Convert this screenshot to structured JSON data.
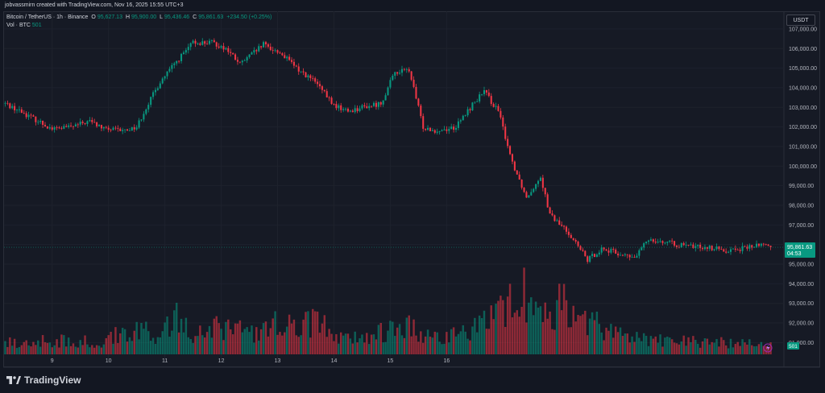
{
  "header": {
    "attribution": "jobvassmirn created with TradingView.com, Nov 16, 2025 15:55 UTC+3"
  },
  "legend": {
    "symbol": "Bitcoin / TetherUS · 1h · Binance",
    "open_label": "O",
    "open": "95,627.13",
    "high_label": "H",
    "high": "95,900.00",
    "low_label": "L",
    "low": "95,436.46",
    "close_label": "C",
    "close": "95,861.63",
    "change": "+234.50 (+0.25%)",
    "vol_label": "Vol · BTC",
    "vol_value": "501"
  },
  "currency_button": "USDT",
  "price_tag": {
    "price": "95,861.63",
    "countdown": "04:53"
  },
  "volume_tag": "501",
  "footer": {
    "brand": "TradingView"
  },
  "colors": {
    "up": "#089981",
    "down": "#f23645",
    "background": "#131722",
    "grid": "#1e222d",
    "text": "#d1d4dc"
  },
  "chart_data": {
    "type": "candlestick",
    "interval": "1h",
    "ylim": [
      90400,
      107900
    ],
    "grid": true,
    "y_ticks": [
      "107,000.00",
      "106,000.00",
      "105,000.00",
      "104,000.00",
      "103,000.00",
      "102,000.00",
      "101,000.00",
      "100,000.00",
      "99,000.00",
      "98,000.00",
      "97,000.00",
      "96,000.00",
      "95,000.00",
      "94,000.00",
      "93,000.00",
      "92,000.00",
      "91,000.00"
    ],
    "y_tick_values": [
      107000,
      106000,
      105000,
      104000,
      103000,
      102000,
      101000,
      100000,
      99000,
      98000,
      97000,
      96000,
      95000,
      94000,
      93000,
      92000,
      91000
    ],
    "x_ticks": [
      "9",
      "10",
      "11",
      "12",
      "13",
      "14",
      "15",
      "16"
    ],
    "price_anchors": [
      [
        0,
        103200
      ],
      [
        8,
        102700
      ],
      [
        14,
        102300
      ],
      [
        20,
        101900
      ],
      [
        28,
        102000
      ],
      [
        36,
        102300
      ],
      [
        42,
        101900
      ],
      [
        50,
        101800
      ],
      [
        56,
        102000
      ],
      [
        60,
        103000
      ],
      [
        66,
        104300
      ],
      [
        72,
        105200
      ],
      [
        80,
        106300
      ],
      [
        88,
        106300
      ],
      [
        94,
        106000
      ],
      [
        100,
        105200
      ],
      [
        110,
        106200
      ],
      [
        118,
        105700
      ],
      [
        124,
        105000
      ],
      [
        132,
        104300
      ],
      [
        140,
        103100
      ],
      [
        146,
        102800
      ],
      [
        152,
        103000
      ],
      [
        160,
        103200
      ],
      [
        166,
        104800
      ],
      [
        172,
        104900
      ],
      [
        178,
        102000
      ],
      [
        184,
        101800
      ],
      [
        192,
        102000
      ],
      [
        200,
        103300
      ],
      [
        204,
        103800
      ],
      [
        210,
        102800
      ],
      [
        216,
        100200
      ],
      [
        222,
        98400
      ],
      [
        228,
        99500
      ],
      [
        232,
        97500
      ],
      [
        240,
        96600
      ],
      [
        248,
        95200
      ],
      [
        254,
        95800
      ],
      [
        262,
        95500
      ],
      [
        268,
        95300
      ],
      [
        274,
        96300
      ],
      [
        282,
        96100
      ],
      [
        290,
        95900
      ],
      [
        298,
        95900
      ],
      [
        306,
        95700
      ],
      [
        314,
        95800
      ],
      [
        322,
        96000
      ],
      [
        326,
        95861.63
      ]
    ],
    "volume_anchors": [
      [
        0,
        18
      ],
      [
        20,
        22
      ],
      [
        40,
        20
      ],
      [
        58,
        50
      ],
      [
        64,
        30
      ],
      [
        74,
        60
      ],
      [
        80,
        35
      ],
      [
        90,
        45
      ],
      [
        100,
        38
      ],
      [
        108,
        30
      ],
      [
        116,
        55
      ],
      [
        124,
        40
      ],
      [
        132,
        58
      ],
      [
        140,
        30
      ],
      [
        150,
        25
      ],
      [
        160,
        35
      ],
      [
        170,
        50
      ],
      [
        178,
        28
      ],
      [
        190,
        30
      ],
      [
        200,
        40
      ],
      [
        210,
        62
      ],
      [
        216,
        85
      ],
      [
        220,
        100
      ],
      [
        226,
        75
      ],
      [
        232,
        55
      ],
      [
        238,
        90
      ],
      [
        244,
        65
      ],
      [
        250,
        50
      ],
      [
        256,
        40
      ],
      [
        266,
        30
      ],
      [
        280,
        22
      ],
      [
        300,
        20
      ],
      [
        320,
        18
      ],
      [
        326,
        16
      ]
    ]
  }
}
